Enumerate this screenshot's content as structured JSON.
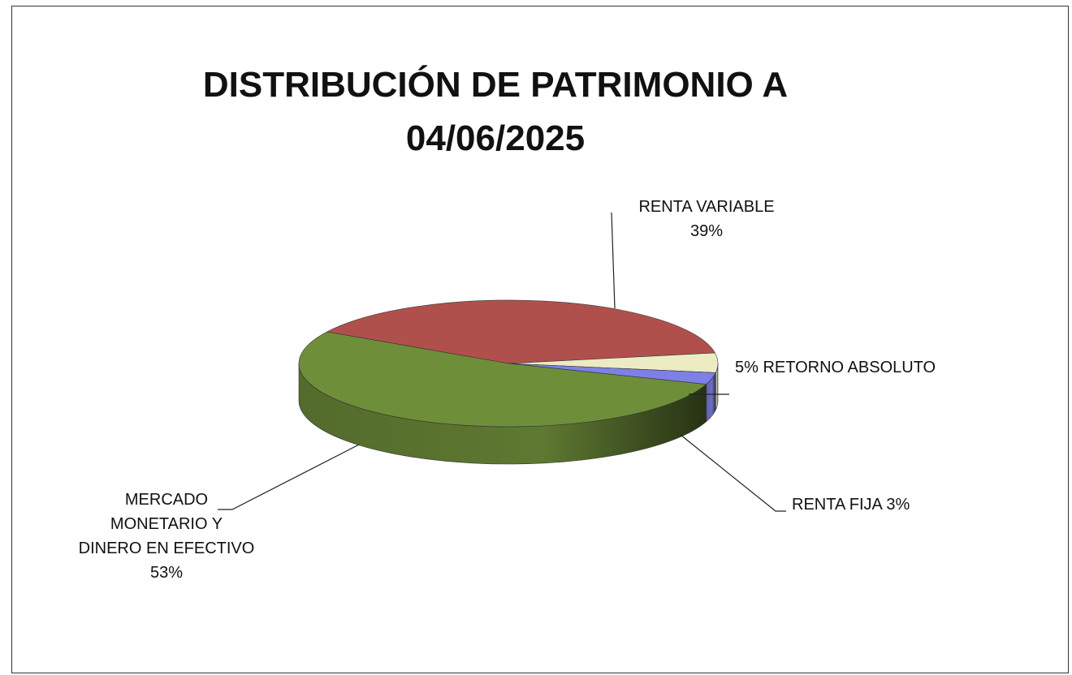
{
  "chart_data": {
    "type": "pie",
    "title": "DISTRIBUCIÓN DE PATRIMONIO A 04/06/2025",
    "categories": [
      "RENTA VARIABLE",
      "RETORNO ABSOLUTO",
      "RENTA FIJA",
      "MERCADO MONETARIO Y DINERO EN EFECTIVO"
    ],
    "values": [
      39,
      5,
      3,
      53
    ],
    "value_labels": [
      "39%",
      "5%",
      "3%",
      "53%"
    ],
    "colors": [
      "#b0504c",
      "#ecebc3",
      "#7f80e6",
      "#6f8e3a"
    ]
  }
}
